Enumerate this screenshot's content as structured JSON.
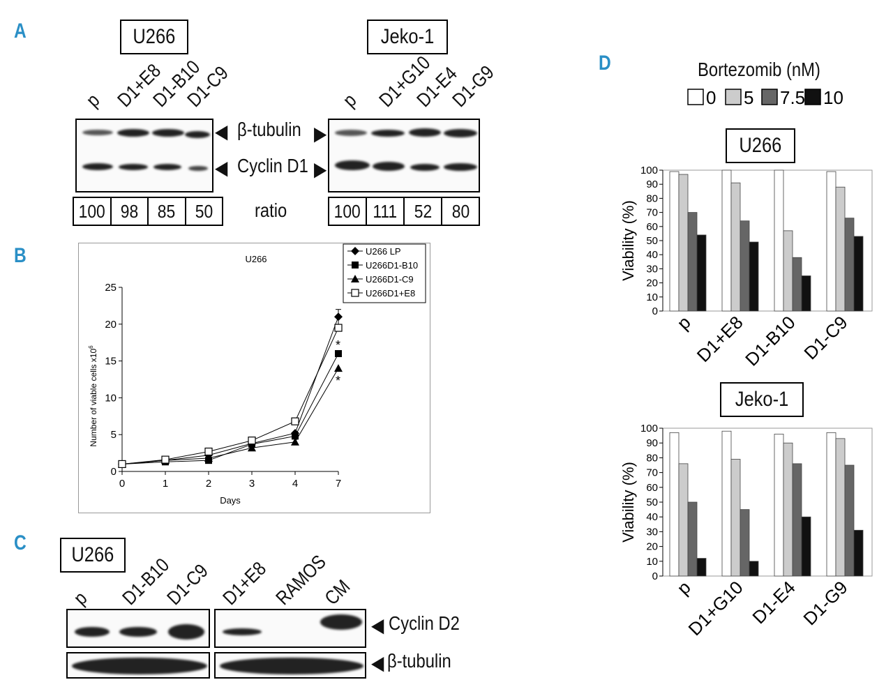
{
  "panels": {
    "A": {
      "letter": "A",
      "u266": {
        "title": "U266",
        "lanes": [
          "p",
          "D1+E8",
          "D1-B10",
          "D1-C9"
        ],
        "ratios": [
          "100",
          "98",
          "85",
          "50"
        ]
      },
      "jeko": {
        "title": "Jeko-1",
        "lanes": [
          "p",
          "D1+G10",
          "D1-E4",
          "D1-G9"
        ],
        "ratios": [
          "100",
          "111",
          "52",
          "80"
        ]
      },
      "band_labels": {
        "tubulin": "β-tubulin",
        "cyclin": "Cyclin D1",
        "ratio": "ratio"
      }
    },
    "B": {
      "letter": "B"
    },
    "C": {
      "letter": "C",
      "title": "U266",
      "lanes": [
        "p",
        "D1-B10",
        "D1-C9",
        "D1+E8",
        "RAMOS",
        "CM"
      ],
      "band_labels": {
        "cyclin": "Cyclin D2",
        "tubulin": "β-tubulin"
      }
    },
    "D": {
      "letter": "D",
      "legend_title": "Bortezomib (nM)",
      "legend": [
        {
          "label": "0",
          "color": "#ffffff"
        },
        {
          "label": "5",
          "color": "#cccccc"
        },
        {
          "label": "7.5",
          "color": "#666666"
        },
        {
          "label": "10",
          "color": "#111111"
        }
      ],
      "u266_title": "U266",
      "jeko_title": "Jeko-1"
    }
  },
  "chart_data": [
    {
      "type": "line",
      "title": "U266",
      "xlabel": "Days",
      "ylabel": "Number of viable cells x10",
      "ylabel_sup": "6",
      "x": [
        0,
        1,
        2,
        3,
        4,
        7
      ],
      "x_tick_labels": [
        "0",
        "1",
        "2",
        "3",
        "4",
        "7"
      ],
      "ylim": [
        0,
        25
      ],
      "y_ticks": [
        0,
        5,
        10,
        15,
        20,
        25
      ],
      "legend_position": "top-right",
      "series": [
        {
          "name": "U266 LP",
          "marker": "diamond",
          "values": [
            1,
            1.5,
            2.2,
            3.8,
            5.2,
            21
          ]
        },
        {
          "name": "U266D1-B10",
          "marker": "square",
          "values": [
            1,
            1.3,
            1.5,
            3.7,
            4.8,
            16
          ]
        },
        {
          "name": "U266D1-C9",
          "marker": "triangle",
          "values": [
            1,
            1.5,
            1.8,
            3.2,
            4.0,
            14
          ]
        },
        {
          "name": "U266D1+E8",
          "marker": "open-square",
          "values": [
            1,
            1.6,
            2.7,
            4.2,
            6.8,
            19.5
          ]
        }
      ],
      "error_bar_day7": 1.0,
      "annotations": [
        "*",
        "*"
      ]
    },
    {
      "type": "bar",
      "title": "U266",
      "ylabel": "Viability (%)",
      "ylim": [
        0,
        100
      ],
      "y_ticks": [
        0,
        10,
        20,
        30,
        40,
        50,
        60,
        70,
        80,
        90,
        100
      ],
      "categories": [
        "p",
        "D1+E8",
        "D1-B10",
        "D1-C9"
      ],
      "series": [
        {
          "name": "0",
          "values": [
            99,
            100,
            100,
            99
          ]
        },
        {
          "name": "5",
          "values": [
            97,
            91,
            57,
            88
          ]
        },
        {
          "name": "7.5",
          "values": [
            70,
            64,
            38,
            66
          ]
        },
        {
          "name": "10",
          "values": [
            54,
            49,
            25,
            53
          ]
        }
      ]
    },
    {
      "type": "bar",
      "title": "Jeko-1",
      "ylabel": "Viability (%)",
      "ylim": [
        0,
        100
      ],
      "y_ticks": [
        0,
        10,
        20,
        30,
        40,
        50,
        60,
        70,
        80,
        90,
        100
      ],
      "categories": [
        "p",
        "D1+G10",
        "D1-E4",
        "D1-G9"
      ],
      "series": [
        {
          "name": "0",
          "values": [
            97,
            98,
            96,
            97
          ]
        },
        {
          "name": "5",
          "values": [
            76,
            79,
            90,
            93
          ]
        },
        {
          "name": "7.5",
          "values": [
            50,
            45,
            76,
            75
          ]
        },
        {
          "name": "10",
          "values": [
            12,
            10,
            40,
            31
          ]
        }
      ]
    }
  ]
}
